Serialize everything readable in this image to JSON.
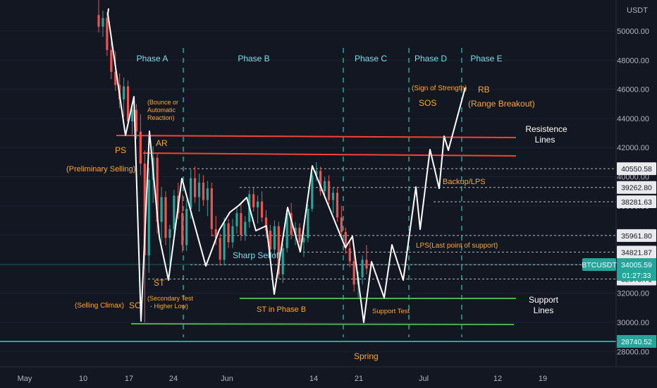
{
  "chart_data": {
    "type": "candlestick",
    "symbol": "BTCUSDT",
    "currency_label": "USDT",
    "y_tick_labels": [
      "50000.00",
      "48000.00",
      "46000.00",
      "44000.00",
      "42000.00",
      "40000.00",
      "38000.00",
      "36000.00",
      "34000.00",
      "32000.00",
      "30000.00",
      "28000.00"
    ],
    "x_tick_labels": [
      "May",
      "10",
      "17",
      "24",
      "Jun",
      "14",
      "21",
      "Jul",
      "12",
      "19"
    ],
    "price_tags": [
      {
        "label": "40550.58",
        "price": 40550.58
      },
      {
        "label": "39262.80",
        "price": 39262.8
      },
      {
        "label": "38281.63",
        "price": 38281.63
      },
      {
        "label": "35961.80",
        "price": 35961.8
      },
      {
        "label": "34821.87",
        "price": 34821.87
      },
      {
        "label": "33960.33",
        "price": 33960.33
      },
      {
        "label": "32975.71",
        "price": 32975.71
      }
    ],
    "current_price": {
      "symbol": "BTCUSDT",
      "price": "34005.59",
      "countdown": "01:27:33"
    },
    "low_tag": {
      "label": "28740.52",
      "price": 28740.52
    },
    "phases": [
      "Phase A",
      "Phase B",
      "Phase C",
      "Phase D",
      "Phase E"
    ],
    "annotations": {
      "ps": "PS",
      "ps_desc": "(Preliminary Selling)",
      "sc": "SC",
      "sc_desc": "(Selling Climax)",
      "ar": "AR",
      "ar_desc_1": "(Bounce or",
      "ar_desc_2": "Automatic",
      "ar_desc_3": "Reaction)",
      "st": "ST",
      "st_desc_1": "(Secondary Test",
      "st_desc_2": "- Higher Low)",
      "sharp_selloff": "Sharp Selloff",
      "st_phase_b": "ST in Phase B",
      "spring": "Spring",
      "support_test": "Support Test",
      "lps": "LPS(Last point of support)",
      "backup_lps": "Backup/LPS",
      "sos_desc": "(Sign of Strength)",
      "sos": "SOS",
      "rb": "RB",
      "rb_desc": "(Range Breakout)",
      "resistance_1": "Resistence",
      "resistance_2": "Lines",
      "support_1": "Support",
      "support_2": "Lines"
    },
    "resistance_lines": [
      42800,
      41500
    ],
    "support_lines": [
      32900,
      29900
    ],
    "colors": {
      "background": "#131722",
      "up": "#26a69a",
      "down": "#ef5350",
      "resistance": "#f44336",
      "support": "#4caf50",
      "phase": "#80deea",
      "annotation": "#ffa726",
      "swing": "#ffffff"
    },
    "candles": [
      [
        51100,
        52500,
        49900,
        50300
      ],
      [
        50300,
        51400,
        49600,
        50900
      ],
      [
        50900,
        51300,
        48300,
        48700
      ],
      [
        48700,
        49500,
        46700,
        47200
      ],
      [
        47200,
        48600,
        45900,
        46300
      ],
      [
        46300,
        47100,
        44700,
        45300
      ],
      [
        45300,
        46800,
        44100,
        46200
      ],
      [
        46200,
        46600,
        43400,
        43800
      ],
      [
        43800,
        45100,
        42900,
        44600
      ],
      [
        44600,
        45000,
        42600,
        43100
      ],
      [
        43100,
        44300,
        40100,
        40900
      ],
      [
        40900,
        41800,
        30000,
        34600
      ],
      [
        34600,
        40600,
        33400,
        39800
      ],
      [
        39800,
        42100,
        38200,
        41300
      ],
      [
        41300,
        41600,
        36100,
        36900
      ],
      [
        36900,
        39300,
        35500,
        38600
      ],
      [
        38600,
        39000,
        35300,
        35800
      ],
      [
        35800,
        36700,
        33900,
        36400
      ],
      [
        36400,
        39100,
        35900,
        38700
      ],
      [
        38700,
        39600,
        37100,
        37500
      ],
      [
        37500,
        38800,
        34800,
        35300
      ],
      [
        35300,
        38400,
        34900,
        37800
      ],
      [
        37800,
        40500,
        37100,
        39900
      ],
      [
        39900,
        40700,
        38200,
        38600
      ],
      [
        38600,
        40200,
        37600,
        39600
      ],
      [
        39600,
        40100,
        38000,
        38400
      ],
      [
        38400,
        39700,
        37300,
        39200
      ],
      [
        39200,
        39600,
        35900,
        36400
      ],
      [
        36400,
        37300,
        35300,
        35800
      ],
      [
        35800,
        36100,
        33900,
        34300
      ],
      [
        34300,
        37200,
        33900,
        36800
      ],
      [
        36800,
        37100,
        35100,
        35500
      ],
      [
        35500,
        37100,
        35100,
        36600
      ],
      [
        36600,
        37900,
        36100,
        37500
      ],
      [
        37500,
        38200,
        35600,
        36000
      ],
      [
        36000,
        37300,
        35600,
        36900
      ],
      [
        36900,
        39100,
        36500,
        38800
      ],
      [
        38800,
        39300,
        37600,
        37900
      ],
      [
        37900,
        38700,
        36800,
        38300
      ],
      [
        38300,
        39000,
        36900,
        37200
      ],
      [
        37200,
        37700,
        35800,
        36300
      ],
      [
        36300,
        36700,
        34600,
        35000
      ],
      [
        35000,
        37000,
        34500,
        36600
      ],
      [
        36600,
        36900,
        33000,
        33300
      ],
      [
        33300,
        35400,
        32700,
        35100
      ],
      [
        35100,
        37700,
        34800,
        37500
      ],
      [
        37500,
        38200,
        35700,
        36000
      ],
      [
        36000,
        36900,
        35300,
        36500
      ],
      [
        36500,
        36800,
        34800,
        35500
      ],
      [
        35500,
        36200,
        34500,
        35800
      ],
      [
        35800,
        38100,
        35500,
        37800
      ],
      [
        37800,
        40300,
        37600,
        40100
      ],
      [
        40100,
        41000,
        39700,
        40400
      ],
      [
        40400,
        40700,
        38700,
        39000
      ],
      [
        39000,
        40000,
        38500,
        39700
      ],
      [
        39700,
        40100,
        38100,
        38400
      ],
      [
        38400,
        39300,
        37500,
        38900
      ],
      [
        38900,
        39200,
        36900,
        37200
      ],
      [
        37200,
        38000,
        35800,
        36200
      ],
      [
        36200,
        36500,
        34700,
        35100
      ],
      [
        35100,
        35700,
        33800,
        34200
      ],
      [
        34200,
        35000,
        32100,
        32600
      ],
      [
        32600,
        33500,
        31700,
        33100
      ],
      [
        33100,
        34600,
        32600,
        34300
      ],
      [
        34300,
        35300,
        33300,
        33700
      ]
    ]
  }
}
